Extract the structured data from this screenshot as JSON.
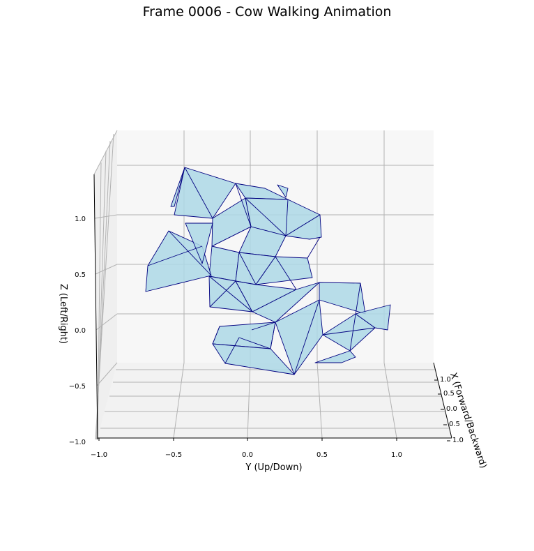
{
  "chart_data": {
    "type": "3d-mesh",
    "title": "Frame 0006 - Cow Walking Animation",
    "xlabel": "X (Forward/Backward)",
    "ylabel": "Y (Up/Down)",
    "zlabel": "Z (Left/Right)",
    "xlim": [
      -1.0,
      1.0
    ],
    "ylim": [
      -1.0,
      1.3
    ],
    "zlim": [
      -1.0,
      1.3
    ],
    "x_ticks": [
      "−1.0",
      "−0.5",
      "0.0",
      "0.5",
      "1.0"
    ],
    "y_ticks": [
      "−1.0",
      "−0.5",
      "0.0",
      "0.5",
      "1.0"
    ],
    "z_ticks": [
      "−1.0",
      "−0.5",
      "0.0",
      "0.5",
      "1.0"
    ],
    "grid": true,
    "colors": {
      "face": "#add8e6",
      "edge": "#000080",
      "pane": "#f2f2f2",
      "grid": "#b0b0b0"
    }
  }
}
